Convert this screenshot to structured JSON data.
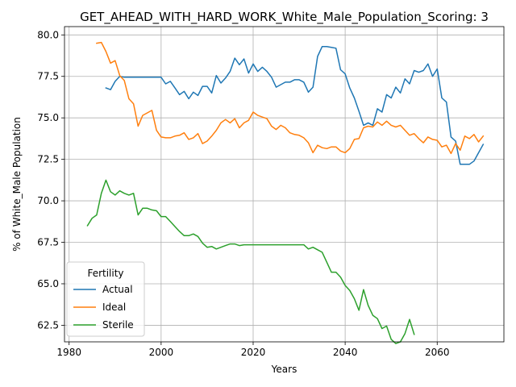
{
  "chart_data": {
    "type": "line",
    "title": "GET_AHEAD_WITH_HARD_WORK_White_Male_Population_Scoring: 3",
    "xlabel": "Years",
    "ylabel": "% of White_Male Population",
    "xlim": [
      1979.0,
      2074.5
    ],
    "ylim": [
      61.5,
      80.5
    ],
    "xticks": [
      1980,
      2000,
      2020,
      2040,
      2060
    ],
    "xtick_labels": [
      "1980",
      "2000",
      "2020",
      "2040",
      "2060"
    ],
    "yticks": [
      62.5,
      65.0,
      67.5,
      70.0,
      72.5,
      75.0,
      77.5,
      80.0
    ],
    "ytick_labels": [
      "62.5",
      "65.0",
      "67.5",
      "70.0",
      "72.5",
      "75.0",
      "77.5",
      "80.0"
    ],
    "grid": true,
    "legend": {
      "title": "Fertility",
      "placement": "lower-left"
    },
    "series": [
      {
        "name": "Actual",
        "color": "#1f77b4",
        "x": [
          1988,
          1989,
          1990,
          1991,
          1992,
          1993,
          1994,
          1995,
          1996,
          1997,
          1998,
          1999,
          2000,
          2001,
          2002,
          2003,
          2004,
          2005,
          2006,
          2007,
          2008,
          2009,
          2010,
          2011,
          2012,
          2013,
          2014,
          2015,
          2016,
          2017,
          2018,
          2019,
          2020,
          2021,
          2022,
          2023,
          2024,
          2025,
          2026,
          2027,
          2028,
          2029,
          2030,
          2031,
          2032,
          2033,
          2034,
          2035,
          2036,
          2037,
          2038,
          2039,
          2040,
          2041,
          2042,
          2043,
          2044,
          2045,
          2046,
          2047,
          2048,
          2049,
          2050,
          2051,
          2052,
          2053,
          2054,
          2055,
          2056,
          2057,
          2058,
          2059,
          2060,
          2061,
          2062,
          2063,
          2064,
          2065,
          2066,
          2067,
          2068,
          2069,
          2070
        ],
        "y": [
          76.8,
          76.7,
          77.2,
          77.5,
          77.45,
          77.45,
          77.45,
          77.45,
          77.45,
          77.45,
          77.45,
          77.45,
          77.45,
          77.05,
          77.2,
          76.8,
          76.4,
          76.6,
          76.15,
          76.55,
          76.35,
          76.9,
          76.9,
          76.5,
          77.55,
          77.1,
          77.4,
          77.8,
          78.6,
          78.2,
          78.55,
          77.7,
          78.25,
          77.8,
          78.05,
          77.8,
          77.45,
          76.85,
          77.0,
          77.15,
          77.15,
          77.3,
          77.3,
          77.15,
          76.55,
          76.85,
          78.7,
          79.3,
          79.3,
          79.25,
          79.2,
          77.9,
          77.65,
          76.8,
          76.2,
          75.4,
          74.55,
          74.7,
          74.55,
          75.55,
          75.35,
          76.4,
          76.2,
          76.85,
          76.5,
          77.35,
          77.05,
          77.85,
          77.75,
          77.85,
          78.25,
          77.5,
          77.95,
          76.2,
          75.95,
          73.85,
          73.6,
          72.2,
          72.2,
          72.2,
          72.4,
          72.9,
          73.4
        ]
      },
      {
        "name": "Ideal",
        "color": "#ff7f0e",
        "x": [
          1986,
          1987,
          1988,
          1989,
          1990,
          1991,
          1992,
          1993,
          1994,
          1995,
          1996,
          1997,
          1998,
          1999,
          2000,
          2001,
          2002,
          2003,
          2004,
          2005,
          2006,
          2007,
          2008,
          2009,
          2010,
          2011,
          2012,
          2013,
          2014,
          2015,
          2016,
          2017,
          2018,
          2019,
          2020,
          2021,
          2022,
          2023,
          2024,
          2025,
          2026,
          2027,
          2028,
          2029,
          2030,
          2031,
          2032,
          2033,
          2034,
          2035,
          2036,
          2037,
          2038,
          2039,
          2040,
          2041,
          2042,
          2043,
          2044,
          2045,
          2046,
          2047,
          2048,
          2049,
          2050,
          2051,
          2052,
          2053,
          2054,
          2055,
          2056,
          2057,
          2058,
          2059,
          2060,
          2061,
          2062,
          2063,
          2064,
          2065,
          2066,
          2067,
          2068,
          2069,
          2070
        ],
        "y": [
          79.5,
          79.55,
          79.0,
          78.3,
          78.45,
          77.55,
          77.25,
          76.15,
          75.85,
          74.5,
          75.15,
          75.3,
          75.45,
          74.25,
          73.85,
          73.8,
          73.8,
          73.9,
          73.95,
          74.1,
          73.7,
          73.8,
          74.05,
          73.45,
          73.6,
          73.9,
          74.25,
          74.7,
          74.9,
          74.7,
          74.95,
          74.4,
          74.7,
          74.85,
          75.35,
          75.15,
          75.05,
          74.95,
          74.5,
          74.3,
          74.55,
          74.4,
          74.1,
          74.0,
          73.95,
          73.8,
          73.5,
          72.9,
          73.35,
          73.2,
          73.15,
          73.25,
          73.25,
          73.0,
          72.9,
          73.15,
          73.7,
          73.75,
          74.4,
          74.5,
          74.45,
          74.75,
          74.55,
          74.8,
          74.55,
          74.45,
          74.55,
          74.25,
          73.95,
          74.05,
          73.75,
          73.5,
          73.85,
          73.7,
          73.65,
          73.25,
          73.35,
          72.85,
          73.45,
          73.05,
          73.9,
          73.75,
          74.0,
          73.55,
          73.9
        ]
      },
      {
        "name": "Sterile",
        "color": "#2ca02c",
        "x": [
          1984,
          1985,
          1986,
          1987,
          1988,
          1989,
          1990,
          1991,
          1992,
          1993,
          1994,
          1995,
          1996,
          1997,
          1998,
          1999,
          2000,
          2001,
          2002,
          2003,
          2004,
          2005,
          2006,
          2007,
          2008,
          2009,
          2010,
          2011,
          2012,
          2013,
          2014,
          2015,
          2016,
          2017,
          2018,
          2019,
          2020,
          2021,
          2022,
          2023,
          2024,
          2025,
          2026,
          2027,
          2028,
          2029,
          2030,
          2031,
          2032,
          2033,
          2034,
          2035,
          2036,
          2037,
          2038,
          2039,
          2040,
          2041,
          2042,
          2043,
          2044,
          2045,
          2046,
          2047,
          2048,
          2049,
          2050,
          2051,
          2052,
          2053,
          2054,
          2055
        ],
        "y": [
          68.5,
          68.95,
          69.15,
          70.45,
          71.25,
          70.55,
          70.35,
          70.6,
          70.45,
          70.35,
          70.45,
          69.15,
          69.55,
          69.55,
          69.45,
          69.4,
          69.05,
          69.05,
          68.75,
          68.45,
          68.15,
          67.9,
          67.9,
          68.0,
          67.85,
          67.45,
          67.2,
          67.25,
          67.1,
          67.2,
          67.3,
          67.4,
          67.4,
          67.3,
          67.35,
          67.35,
          67.35,
          67.35,
          67.35,
          67.35,
          67.35,
          67.35,
          67.35,
          67.35,
          67.35,
          67.35,
          67.35,
          67.35,
          67.1,
          67.2,
          67.05,
          66.9,
          66.3,
          65.7,
          65.7,
          65.4,
          64.9,
          64.6,
          64.1,
          63.4,
          64.65,
          63.7,
          63.1,
          62.9,
          62.3,
          62.45,
          61.65,
          61.4,
          61.5,
          62.0,
          62.85,
          61.95
        ]
      }
    ]
  }
}
